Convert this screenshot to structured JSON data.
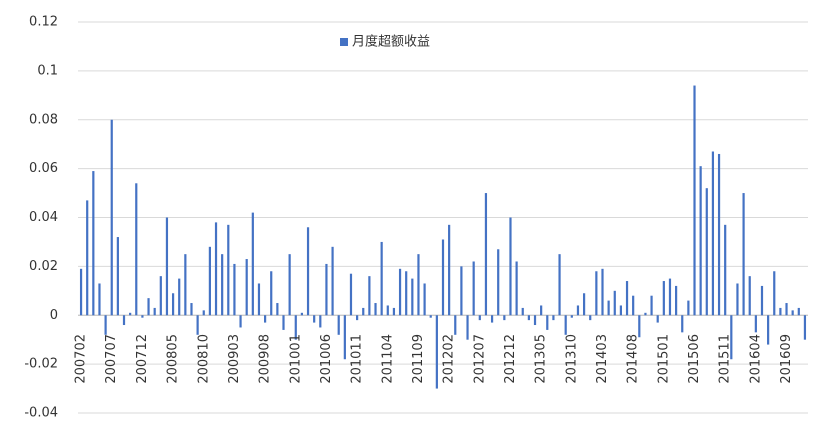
{
  "chart_data": {
    "type": "bar",
    "categories": [
      "200702",
      null,
      null,
      null,
      null,
      "200707",
      null,
      null,
      null,
      null,
      "200712",
      null,
      null,
      null,
      null,
      "200805",
      null,
      null,
      null,
      null,
      "200810",
      null,
      null,
      null,
      null,
      "200903",
      null,
      null,
      null,
      null,
      "200908",
      null,
      null,
      null,
      null,
      "201001",
      null,
      null,
      null,
      null,
      "201006",
      null,
      null,
      null,
      null,
      "201011",
      null,
      null,
      null,
      null,
      "201104",
      null,
      null,
      null,
      null,
      "201109",
      null,
      null,
      null,
      null,
      "201202",
      null,
      null,
      null,
      null,
      "201207",
      null,
      null,
      null,
      null,
      "201212",
      null,
      null,
      null,
      null,
      "201305",
      null,
      null,
      null,
      null,
      "201310",
      null,
      null,
      null,
      null,
      "201403",
      null,
      null,
      null,
      null,
      "201408",
      null,
      null,
      null,
      null,
      "201501",
      null,
      null,
      null,
      null,
      "201506",
      null,
      null,
      null,
      null,
      "201511",
      null,
      null,
      null,
      null,
      "201604",
      null,
      null,
      null,
      null,
      "201609",
      null,
      null,
      null
    ],
    "series": [
      {
        "name": "月度超额收益",
        "color": "#4472c4",
        "values": [
          0.019,
          0.047,
          0.059,
          0.013,
          -0.008,
          0.08,
          0.032,
          -0.004,
          0.001,
          0.054,
          -0.001,
          0.007,
          0.003,
          0.016,
          0.04,
          0.009,
          0.015,
          0.025,
          0.005,
          -0.008,
          0.002,
          0.028,
          0.038,
          0.025,
          0.037,
          0.021,
          -0.005,
          0.023,
          0.042,
          0.013,
          -0.003,
          0.018,
          0.005,
          -0.006,
          0.025,
          -0.01,
          0.001,
          0.036,
          -0.003,
          -0.005,
          0.021,
          0.028,
          -0.008,
          -0.018,
          0.017,
          -0.002,
          0.003,
          0.016,
          0.005,
          0.03,
          0.004,
          0.003,
          0.019,
          0.018,
          0.015,
          0.025,
          0.013,
          -0.001,
          -0.03,
          0.031,
          0.037,
          -0.008,
          0.02,
          -0.01,
          0.022,
          -0.002,
          0.05,
          -0.003,
          0.027,
          -0.002,
          0.04,
          0.022,
          0.003,
          -0.002,
          -0.004,
          0.004,
          -0.006,
          -0.002,
          0.025,
          -0.008,
          -0.001,
          0.004,
          0.009,
          -0.002,
          0.018,
          0.019,
          0.006,
          0.01,
          0.004,
          0.014,
          0.008,
          -0.009,
          0.001,
          0.008,
          -0.003,
          0.014,
          0.015,
          0.012,
          -0.007,
          0.006,
          0.094,
          0.061,
          0.052,
          0.067,
          0.066,
          0.037,
          -0.018,
          0.013,
          0.05,
          0.016,
          -0.007,
          0.012,
          -0.012,
          0.018,
          0.003,
          0.005,
          0.002,
          0.003,
          -0.01
        ]
      }
    ],
    "ylim": [
      -0.04,
      0.12
    ],
    "yticks": [
      -0.04,
      -0.02,
      0,
      0.02,
      0.04,
      0.06,
      0.08,
      0.1,
      0.12
    ],
    "grid": true,
    "legend": "top"
  }
}
